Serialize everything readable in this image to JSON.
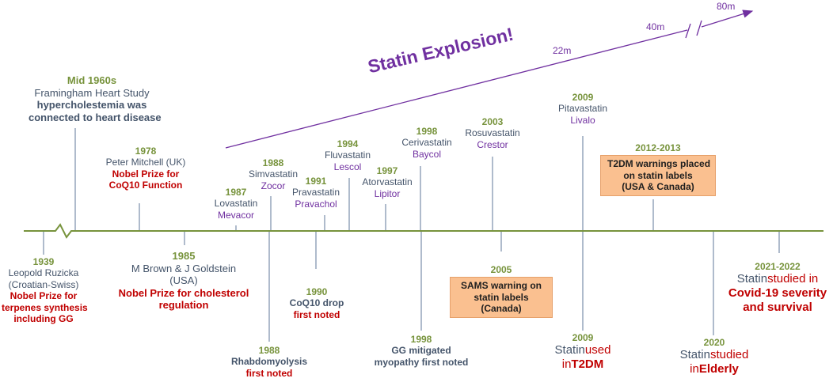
{
  "title": "Statin Explosion!",
  "growth_labels": [
    "22m",
    "40m",
    "80m"
  ],
  "events_above": [
    {
      "id": "mid1960s",
      "year": "Mid 1960s",
      "lines": [
        {
          "text": "Framingham Heart Study",
          "style": "gray"
        },
        {
          "text": "hypercholestemia was",
          "style": "navyb"
        },
        {
          "text": "connected to heart disease",
          "style": "navyb"
        }
      ]
    },
    {
      "id": "1978",
      "year": "1978",
      "lines": [
        {
          "text": "Peter Mitchell (UK)",
          "style": "gray"
        },
        {
          "text": "Nobel Prize for",
          "style": "red"
        },
        {
          "text": "CoQ10 Function",
          "style": "red"
        }
      ]
    },
    {
      "id": "1987",
      "year": "1987",
      "lines": [
        {
          "text": "Lovastatin",
          "style": "gray"
        },
        {
          "text": "Mevacor",
          "style": "purple"
        }
      ]
    },
    {
      "id": "1988",
      "year": "1988",
      "lines": [
        {
          "text": "Simvastatin",
          "style": "gray"
        },
        {
          "text": "Zocor",
          "style": "purple"
        }
      ]
    },
    {
      "id": "1991",
      "year": "1991",
      "lines": [
        {
          "text": "Pravastatin",
          "style": "gray"
        },
        {
          "text": "Pravachol",
          "style": "purple"
        }
      ]
    },
    {
      "id": "1994",
      "year": "1994",
      "lines": [
        {
          "text": "Fluvastatin",
          "style": "gray"
        },
        {
          "text": "Lescol",
          "style": "purple"
        }
      ]
    },
    {
      "id": "1997",
      "year": "1997",
      "lines": [
        {
          "text": "Atorvastatin",
          "style": "gray"
        },
        {
          "text": "Lipitor",
          "style": "purple"
        }
      ]
    },
    {
      "id": "1998",
      "year": "1998",
      "lines": [
        {
          "text": "Cerivastatin",
          "style": "gray"
        },
        {
          "text": "Baycol",
          "style": "purple"
        }
      ]
    },
    {
      "id": "2003",
      "year": "2003",
      "lines": [
        {
          "text": "Rosuvastatin",
          "style": "gray"
        },
        {
          "text": "Crestor",
          "style": "purple"
        }
      ]
    },
    {
      "id": "2009",
      "year": "2009",
      "lines": [
        {
          "text": "Pitavastatin",
          "style": "gray"
        },
        {
          "text": "Livalo",
          "style": "purple"
        }
      ]
    },
    {
      "id": "2012-2013",
      "year": "2012-2013",
      "box_lines": [
        "T2DM warnings placed",
        "on statin labels",
        "(USA & Canada)"
      ]
    }
  ],
  "events_below": [
    {
      "id": "1939",
      "year": "1939",
      "lines": [
        {
          "text": "Leopold Ruzicka",
          "style": "gray"
        },
        {
          "text": "(Croatian-Swiss)",
          "style": "gray"
        },
        {
          "text": "Nobel Prize for",
          "style": "red"
        },
        {
          "text": "terpenes synthesis",
          "style": "red"
        },
        {
          "text": "including GG",
          "style": "red"
        }
      ]
    },
    {
      "id": "1985",
      "year": "1985",
      "lines": [
        {
          "text": "M Brown & J Goldstein",
          "style": "gray"
        },
        {
          "text": "(USA)",
          "style": "gray"
        },
        {
          "text": "Nobel Prize for cholesterol",
          "style": "red"
        },
        {
          "text": "regulation",
          "style": "red"
        }
      ]
    },
    {
      "id": "1990",
      "year": "1990",
      "lines": [
        {
          "text": "CoQ10 drop",
          "style": "navyb"
        },
        {
          "text": "first noted",
          "style": "red"
        }
      ]
    },
    {
      "id": "1988b",
      "year": "1988",
      "lines": [
        {
          "text": "Rhabdomyolysis",
          "style": "navyb"
        },
        {
          "text": "first noted",
          "style": "red"
        }
      ]
    },
    {
      "id": "1998b",
      "year": "1998",
      "lines": [
        {
          "text": "GG mitigated",
          "style": "navyb"
        },
        {
          "text": "myopathy first noted",
          "style": "navyb"
        }
      ]
    },
    {
      "id": "2005",
      "year": "2005",
      "box_lines": [
        "SAMS warning on",
        "statin labels",
        "(Canada)"
      ]
    },
    {
      "id": "2009b",
      "year": "2009",
      "split": [
        {
          "a": "Statin",
          "b": "used"
        },
        {
          "a": "in",
          "b": "T2DM"
        }
      ]
    },
    {
      "id": "2020",
      "year": "2020",
      "split": [
        {
          "a": "Statin",
          "b": "studied"
        },
        {
          "a": "in",
          "b": "Elderly"
        }
      ]
    },
    {
      "id": "2021-2022",
      "year": "2021-2022",
      "split": [
        {
          "a": "Statin",
          "b": "studied in"
        },
        {
          "a": "",
          "b": "Covid-19 severity"
        },
        {
          "a": "",
          "b": "and survival"
        }
      ]
    }
  ],
  "colors": {
    "timeline": "#77933C",
    "arrow": "#7030A0",
    "ticks": "#8496B0",
    "highlight_box": "#FAC090"
  }
}
